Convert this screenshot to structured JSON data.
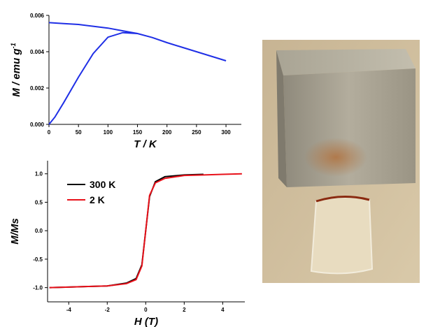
{
  "chart_data": [
    {
      "type": "line",
      "ylabel": "M / emu g",
      "ylabel_sup": "-1",
      "xlabel": "T / K",
      "series": [
        {
          "color": "#1f2fe6",
          "x": [
            0,
            25,
            50,
            75,
            100,
            125,
            150,
            175,
            200,
            225,
            250,
            275,
            300
          ],
          "values": [
            0.0056,
            0.00555,
            0.0055,
            0.0054,
            0.0053,
            0.00515,
            0.005,
            0.00478,
            0.0045,
            0.00425,
            0.004,
            0.00375,
            0.0035
          ]
        },
        {
          "color": "#1f2fe6",
          "x": [
            0,
            10,
            25,
            50,
            75,
            100,
            125,
            150
          ],
          "values": [
            0.0,
            0.0004,
            0.0012,
            0.0026,
            0.0039,
            0.0048,
            0.00505,
            0.005
          ]
        }
      ],
      "xlim": [
        0,
        326
      ],
      "xticks": [
        0,
        50,
        100,
        150,
        200,
        250,
        300
      ],
      "ylim": [
        0,
        0.006
      ],
      "yticks": [
        {
          "value": 0,
          "label": "0.000"
        },
        {
          "value": 0.002,
          "label": "0.002"
        },
        {
          "value": 0.004,
          "label": "0.004"
        },
        {
          "value": 0.006,
          "label": "0.006"
        }
      ]
    },
    {
      "type": "line",
      "ylabel": "M/Ms",
      "xlabel": "H (T)",
      "legend": "upper left",
      "series": [
        {
          "name": "300 K",
          "color": "#000000",
          "x": [
            -5,
            -4,
            -3,
            -2,
            -1,
            -0.5,
            -0.2,
            0,
            0.2,
            0.5,
            1,
            2,
            3
          ],
          "values": [
            -1,
            -0.99,
            -0.98,
            -0.97,
            -0.92,
            -0.84,
            -0.6,
            0,
            0.6,
            0.86,
            0.95,
            0.98,
            0.99
          ]
        },
        {
          "name": "2 K",
          "color": "#e8111a",
          "x": [
            -5,
            -4,
            -3,
            -2,
            -1,
            -0.5,
            -0.2,
            0,
            0.2,
            0.5,
            1,
            2,
            3,
            4,
            5
          ],
          "values": [
            -1,
            -0.99,
            -0.98,
            -0.97,
            -0.93,
            -0.86,
            -0.62,
            0,
            0.62,
            0.84,
            0.92,
            0.97,
            0.98,
            0.99,
            1
          ]
        }
      ],
      "xlim": [
        -5.1,
        5.15
      ],
      "xticks": [
        -4,
        -2,
        0,
        2,
        4
      ],
      "ylim": [
        -1.25,
        1.23
      ],
      "yticks": [
        {
          "value": 1,
          "label": "1.0"
        },
        0.5,
        {
          "value": 0,
          "label": "0.0"
        },
        -0.5,
        {
          "value": -1,
          "label": "-1.0"
        }
      ]
    }
  ]
}
